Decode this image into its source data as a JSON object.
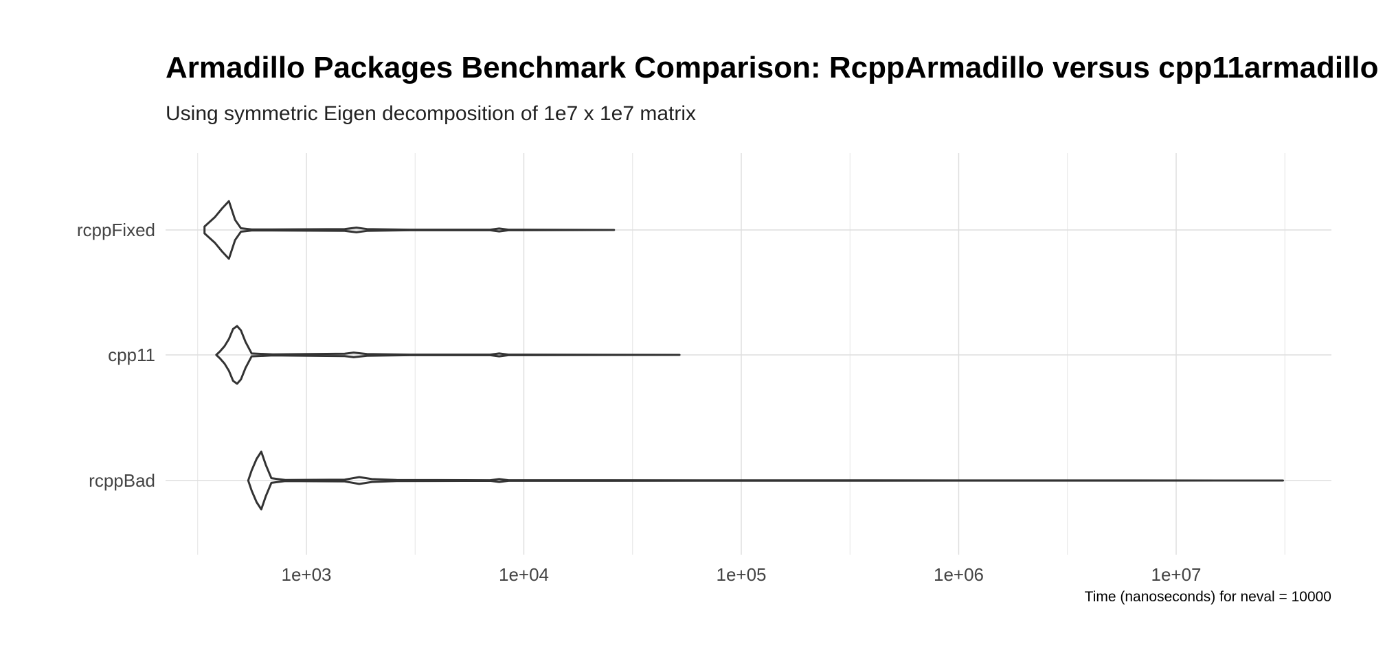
{
  "chart_data": {
    "type": "violin",
    "title": "Armadillo Packages Benchmark Comparison: RcppArmadillo versus cpp11armadillo",
    "subtitle": "Using symmetric Eigen decomposition of 1e7 x 1e7 matrix",
    "xlabel": "Time (nanoseconds) for neval = 10000",
    "ylabel": "",
    "x_scale": "log10",
    "xlim": [
      230,
      48000000
    ],
    "x_ticks": [
      {
        "value": 1000,
        "label": "1e+03"
      },
      {
        "value": 10000,
        "label": "1e+04"
      },
      {
        "value": 100000,
        "label": "1e+05"
      },
      {
        "value": 1000000,
        "label": "1e+06"
      },
      {
        "value": 10000000,
        "label": "1e+07"
      }
    ],
    "grid": true,
    "legend": "none",
    "series": [
      {
        "name": "rcppFixed",
        "min": 340,
        "mode": 440,
        "max": 26000,
        "profile": [
          [
            340,
            0.12
          ],
          [
            380,
            0.45
          ],
          [
            410,
            0.75
          ],
          [
            440,
            1.0
          ],
          [
            470,
            0.35
          ],
          [
            500,
            0.06
          ],
          [
            560,
            0.02
          ],
          [
            700,
            0.02
          ],
          [
            1500,
            0.03
          ],
          [
            1700,
            0.08
          ],
          [
            1900,
            0.03
          ],
          [
            3000,
            0.01
          ],
          [
            7000,
            0.01
          ],
          [
            7700,
            0.05
          ],
          [
            8500,
            0.01
          ],
          [
            26000,
            0.0
          ]
        ]
      },
      {
        "name": "cpp11",
        "min": 385,
        "mode": 480,
        "max": 52000,
        "profile": [
          [
            385,
            0.0
          ],
          [
            400,
            0.12
          ],
          [
            420,
            0.3
          ],
          [
            440,
            0.55
          ],
          [
            460,
            0.9
          ],
          [
            480,
            1.0
          ],
          [
            500,
            0.85
          ],
          [
            525,
            0.45
          ],
          [
            560,
            0.05
          ],
          [
            700,
            0.02
          ],
          [
            1500,
            0.04
          ],
          [
            1650,
            0.08
          ],
          [
            1900,
            0.03
          ],
          [
            3000,
            0.01
          ],
          [
            7000,
            0.01
          ],
          [
            7700,
            0.05
          ],
          [
            8500,
            0.01
          ],
          [
            52000,
            0.0
          ]
        ]
      },
      {
        "name": "rcppBad",
        "min": 540,
        "mode": 620,
        "max": 31000000,
        "profile": [
          [
            540,
            0.0
          ],
          [
            560,
            0.35
          ],
          [
            590,
            0.75
          ],
          [
            620,
            1.0
          ],
          [
            650,
            0.55
          ],
          [
            690,
            0.08
          ],
          [
            800,
            0.02
          ],
          [
            1500,
            0.03
          ],
          [
            1750,
            0.12
          ],
          [
            2000,
            0.05
          ],
          [
            2600,
            0.02
          ],
          [
            7000,
            0.01
          ],
          [
            7700,
            0.05
          ],
          [
            8500,
            0.01
          ],
          [
            31000000,
            0.0
          ]
        ]
      }
    ]
  }
}
